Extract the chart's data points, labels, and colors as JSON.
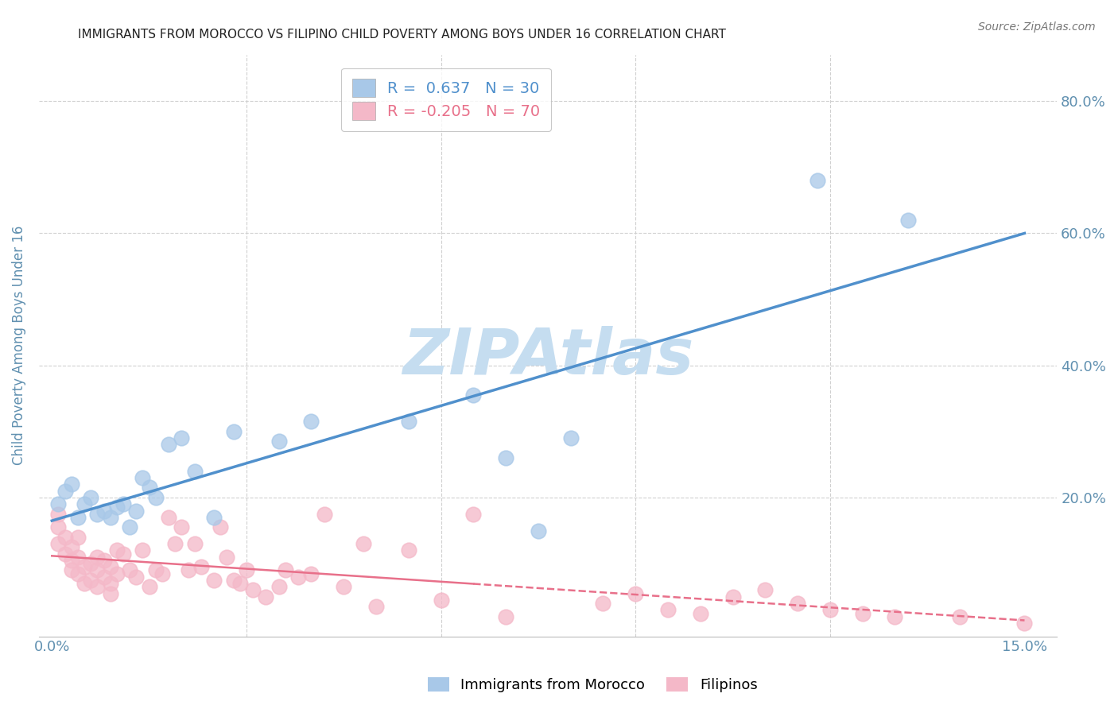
{
  "title": "IMMIGRANTS FROM MOROCCO VS FILIPINO CHILD POVERTY AMONG BOYS UNDER 16 CORRELATION CHART",
  "source": "Source: ZipAtlas.com",
  "ylabel": "Child Poverty Among Boys Under 16",
  "y_ticks": [
    0.0,
    0.2,
    0.4,
    0.6,
    0.8
  ],
  "y_tick_labels_right": [
    "",
    "20.0%",
    "40.0%",
    "60.0%",
    "80.0%"
  ],
  "x_ticks": [
    0.0,
    0.03,
    0.06,
    0.09,
    0.12,
    0.15
  ],
  "xlim": [
    -0.002,
    0.155
  ],
  "ylim": [
    -0.01,
    0.87
  ],
  "watermark": "ZIPAtlas",
  "watermark_color": "#c5ddf0",
  "legend_blue_label": "Immigrants from Morocco",
  "legend_pink_label": "Filipinos",
  "blue_R": "0.637",
  "blue_N": "30",
  "pink_R": "-0.205",
  "pink_N": "70",
  "blue_color": "#a8c8e8",
  "pink_color": "#f4b8c8",
  "blue_line_color": "#5090cc",
  "pink_line_color": "#e8708a",
  "grid_color": "#d0d0d0",
  "axis_label_color": "#6090b0",
  "tick_color": "#6090b0",
  "blue_scatter_x": [
    0.001,
    0.002,
    0.003,
    0.004,
    0.005,
    0.006,
    0.007,
    0.008,
    0.009,
    0.01,
    0.011,
    0.012,
    0.013,
    0.014,
    0.015,
    0.016,
    0.018,
    0.02,
    0.022,
    0.025,
    0.028,
    0.035,
    0.04,
    0.055,
    0.065,
    0.07,
    0.075,
    0.08,
    0.118,
    0.132
  ],
  "blue_scatter_y": [
    0.19,
    0.21,
    0.22,
    0.17,
    0.19,
    0.2,
    0.175,
    0.18,
    0.17,
    0.185,
    0.19,
    0.155,
    0.18,
    0.23,
    0.215,
    0.2,
    0.28,
    0.29,
    0.24,
    0.17,
    0.3,
    0.285,
    0.315,
    0.315,
    0.355,
    0.26,
    0.15,
    0.29,
    0.68,
    0.62
  ],
  "pink_scatter_x": [
    0.001,
    0.001,
    0.001,
    0.002,
    0.002,
    0.003,
    0.003,
    0.003,
    0.004,
    0.004,
    0.004,
    0.005,
    0.005,
    0.006,
    0.006,
    0.007,
    0.007,
    0.007,
    0.008,
    0.008,
    0.009,
    0.009,
    0.009,
    0.01,
    0.01,
    0.011,
    0.012,
    0.013,
    0.014,
    0.015,
    0.016,
    0.017,
    0.018,
    0.019,
    0.02,
    0.021,
    0.022,
    0.023,
    0.025,
    0.026,
    0.027,
    0.028,
    0.029,
    0.03,
    0.031,
    0.033,
    0.035,
    0.036,
    0.038,
    0.04,
    0.042,
    0.045,
    0.048,
    0.05,
    0.055,
    0.06,
    0.065,
    0.07,
    0.085,
    0.09,
    0.095,
    0.1,
    0.105,
    0.11,
    0.115,
    0.12,
    0.125,
    0.13,
    0.14,
    0.15
  ],
  "pink_scatter_y": [
    0.175,
    0.155,
    0.13,
    0.14,
    0.115,
    0.125,
    0.105,
    0.09,
    0.14,
    0.11,
    0.085,
    0.095,
    0.07,
    0.1,
    0.075,
    0.09,
    0.11,
    0.065,
    0.08,
    0.105,
    0.095,
    0.07,
    0.055,
    0.12,
    0.085,
    0.115,
    0.09,
    0.08,
    0.12,
    0.065,
    0.09,
    0.085,
    0.17,
    0.13,
    0.155,
    0.09,
    0.13,
    0.095,
    0.075,
    0.155,
    0.11,
    0.075,
    0.07,
    0.09,
    0.06,
    0.05,
    0.065,
    0.09,
    0.08,
    0.085,
    0.175,
    0.065,
    0.13,
    0.035,
    0.12,
    0.045,
    0.175,
    0.02,
    0.04,
    0.055,
    0.03,
    0.025,
    0.05,
    0.06,
    0.04,
    0.03,
    0.025,
    0.02,
    0.02,
    0.01
  ]
}
